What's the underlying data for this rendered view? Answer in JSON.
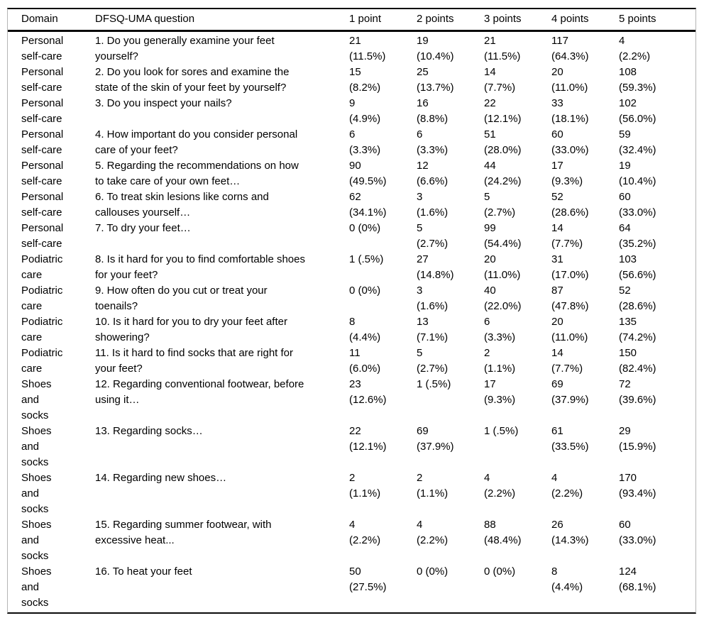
{
  "table": {
    "columns": [
      "Domain",
      "DFSQ-UMA question",
      "1 point",
      "2 points",
      "3 points",
      "4 points",
      "5 points"
    ],
    "rows": [
      {
        "domain": "Personal\nself-care",
        "question": "1. Do you generally examine your feet\nyourself?",
        "points": [
          "21\n(11.5%)",
          "19\n(10.4%)",
          "21\n(11.5%)",
          "117\n(64.3%)",
          "4\n(2.2%)"
        ]
      },
      {
        "domain": "Personal\nself-care",
        "question": "2. Do you look for sores and examine the\nstate of the skin of your feet by yourself?",
        "points": [
          "15\n(8.2%)",
          "25\n(13.7%)",
          "14\n(7.7%)",
          "20\n(11.0%)",
          "108\n(59.3%)"
        ]
      },
      {
        "domain": "Personal\nself-care",
        "question": "3. Do you inspect your nails?",
        "points": [
          "9\n(4.9%)",
          "16\n(8.8%)",
          "22\n(12.1%)",
          "33\n(18.1%)",
          "102\n(56.0%)"
        ]
      },
      {
        "domain": "Personal\nself-care",
        "question": "4. How important do you consider personal\ncare of your feet?",
        "points": [
          "6\n(3.3%)",
          "6\n(3.3%)",
          "51\n(28.0%)",
          "60\n(33.0%)",
          "59\n(32.4%)"
        ]
      },
      {
        "domain": "Personal\nself-care",
        "question": "5. Regarding the recommendations on how\nto take care of your own feet…",
        "points": [
          "90\n(49.5%)",
          "12\n(6.6%)",
          "44\n(24.2%)",
          "17\n(9.3%)",
          "19\n(10.4%)"
        ]
      },
      {
        "domain": "Personal\nself-care",
        "question": "6. To treat skin lesions like corns and\ncallouses yourself…",
        "points": [
          "62\n(34.1%)",
          "3\n(1.6%)",
          "5\n(2.7%)",
          "52\n(28.6%)",
          "60\n(33.0%)"
        ]
      },
      {
        "domain": "Personal\nself-care",
        "question": "7. To dry your feet…",
        "points": [
          "0 (0%)",
          "5\n(2.7%)",
          "99\n(54.4%)",
          "14\n(7.7%)",
          "64\n(35.2%)"
        ]
      },
      {
        "domain": "Podiatric\ncare",
        "question": "8. Is it hard for you to find comfortable shoes\nfor your feet?",
        "points": [
          "1 (.5%)",
          "27\n(14.8%)",
          "20\n(11.0%)",
          "31\n(17.0%)",
          "103\n(56.6%)"
        ]
      },
      {
        "domain": "Podiatric\ncare",
        "question": "9. How often do you cut or treat your\ntoenails?",
        "points": [
          "0 (0%)",
          "3\n(1.6%)",
          "40\n(22.0%)",
          "87\n(47.8%)",
          "52\n(28.6%)"
        ]
      },
      {
        "domain": "Podiatric\ncare",
        "question": "10. Is it hard for you to dry your feet after\nshowering?",
        "points": [
          "8\n(4.4%)",
          "13\n(7.1%)",
          "6\n(3.3%)",
          "20\n(11.0%)",
          "135\n(74.2%)"
        ]
      },
      {
        "domain": "Podiatric\ncare",
        "question": "11. Is it hard to find socks that are right for\nyour feet?",
        "points": [
          "11\n(6.0%)",
          "5\n(2.7%)",
          "2\n(1.1%)",
          "14\n(7.7%)",
          "150\n(82.4%)"
        ]
      },
      {
        "domain": "Shoes\nand\nsocks",
        "question": "12. Regarding conventional footwear, before\nusing it…",
        "points": [
          "23\n(12.6%)",
          "1 (.5%)",
          "17\n(9.3%)",
          "69\n(37.9%)",
          "72\n(39.6%)"
        ]
      },
      {
        "domain": "Shoes\nand\nsocks",
        "question": "13. Regarding socks…",
        "points": [
          "22\n(12.1%)",
          "69\n(37.9%)",
          "1 (.5%)",
          "61\n(33.5%)",
          "29\n(15.9%)"
        ]
      },
      {
        "domain": "Shoes\nand\nsocks",
        "question": "14. Regarding new shoes…",
        "points": [
          "2\n(1.1%)",
          "2\n(1.1%)",
          "4\n(2.2%)",
          "4\n(2.2%)",
          "170\n(93.4%)"
        ]
      },
      {
        "domain": "Shoes\nand\nsocks",
        "question": "15. Regarding summer footwear, with\nexcessive heat...",
        "points": [
          "4\n(2.2%)",
          "4\n(2.2%)",
          "88\n(48.4%)",
          "26\n(14.3%)",
          "60\n(33.0%)"
        ]
      },
      {
        "domain": "Shoes\nand\nsocks",
        "question": "16. To heat your feet",
        "points": [
          "50\n(27.5%)",
          "0 (0%)",
          "0 (0%)",
          "8\n(4.4%)",
          "124\n(68.1%)"
        ]
      }
    ]
  }
}
